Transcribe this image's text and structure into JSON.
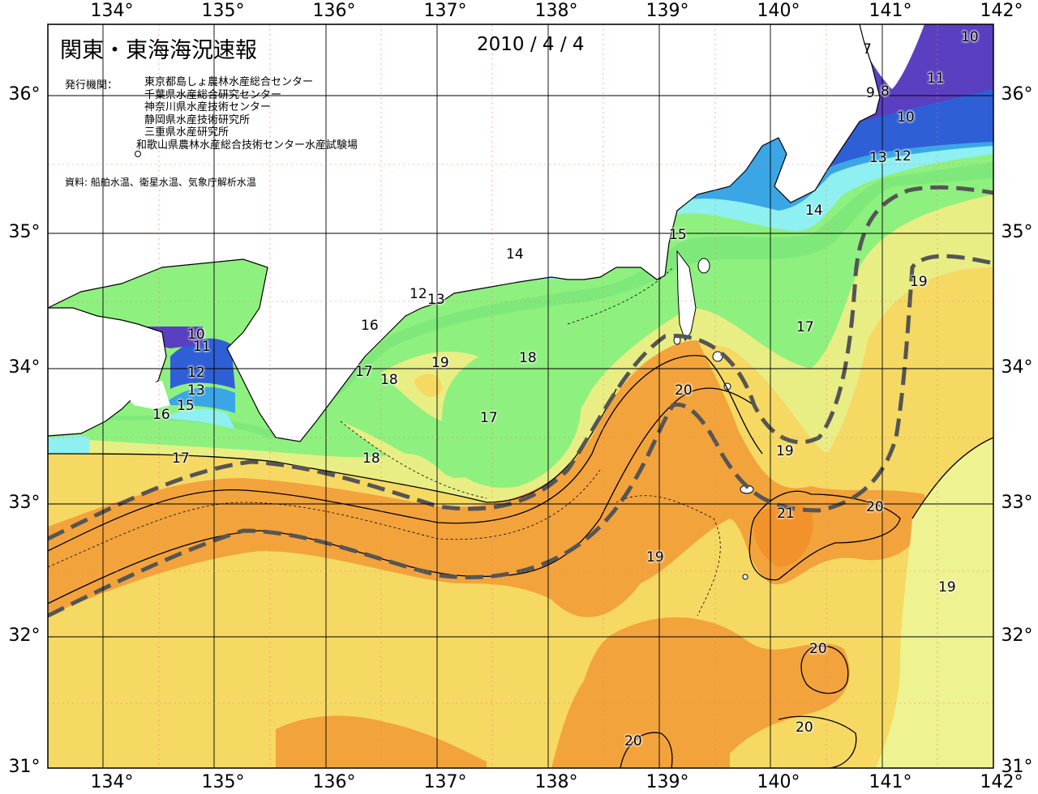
{
  "map": {
    "title": "関東・東海海況速報",
    "date": "2010 / 4 / 4",
    "publisher_heading": "発行機関：",
    "publishers": [
      "東京都島しょ農林水産総合センター",
      "千葉県水産総合研究センター",
      "神奈川県水産技術センター",
      "静岡県水産技術研究所",
      "三重県水産研究所",
      "和歌山県農林水産総合技術センター水産試験場"
    ],
    "source": "資料: 船舶水温、衛星水温、気象庁解析水温",
    "longitude_labels": [
      "134°",
      "135°",
      "136°",
      "137°",
      "138°",
      "139°",
      "140°",
      "141°",
      "142°"
    ],
    "latitude_labels": [
      "36°",
      "35°",
      "34°",
      "33°",
      "32°",
      "31°"
    ],
    "isotherm_labels": [
      "7",
      "9",
      "8",
      "10",
      "11",
      "10",
      "13",
      "12",
      "14",
      "15",
      "14",
      "12",
      "13",
      "16",
      "10",
      "11",
      "12",
      "13",
      "15",
      "16",
      "17",
      "17",
      "18",
      "19",
      "18",
      "17",
      "17",
      "18",
      "20",
      "19",
      "19",
      "21",
      "20",
      "19",
      "19",
      "20",
      "20",
      "20"
    ],
    "colors": {
      "t7": "#ffffff",
      "t8_10": "#5a3fc0",
      "t11_12": "#2f5fd6",
      "t13": "#3aa6e6",
      "t14": "#8ef0f0",
      "t15_16": "#8cf07a",
      "t17": "#8ef07e",
      "t18": "#e4f07c",
      "t19": "#f5d963",
      "t20": "#f3a33c",
      "t21": "#f2922a",
      "land": "#ffffff",
      "grid": "#000000",
      "kuroshio": "#555555"
    }
  }
}
